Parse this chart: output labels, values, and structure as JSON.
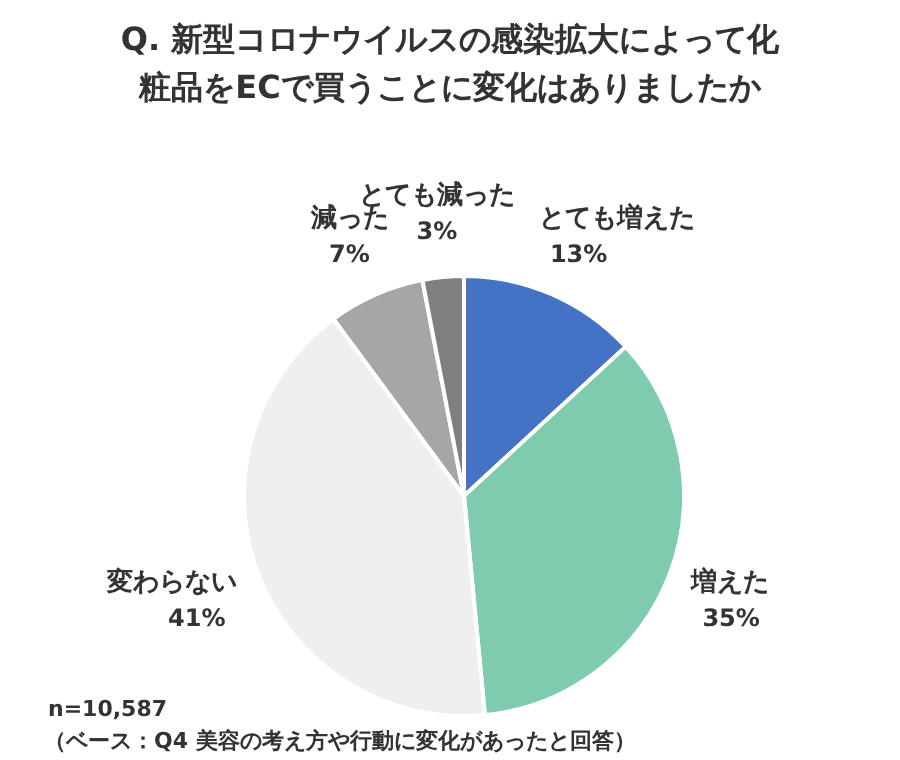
{
  "chart_data": {
    "type": "pie",
    "title": "Q. 新型コロナウイルスの感染拡大によって化粧品をECで買うことに変化はありましたか",
    "categories": [
      "とても増えた",
      "増えた",
      "変わらない",
      "減った",
      "とても減った"
    ],
    "values": [
      13,
      35,
      41,
      7,
      3
    ],
    "colors": [
      "#4472c4",
      "#7fcbae",
      "#efefef",
      "#a6a6a6",
      "#7f7f7f"
    ],
    "value_labels": [
      "13%",
      "35%",
      "41%",
      "7%",
      "3%"
    ],
    "annotations": [
      "n=10,587",
      "（ベース：Q4 美容の考え方や行動に変化があったと回答）"
    ]
  }
}
